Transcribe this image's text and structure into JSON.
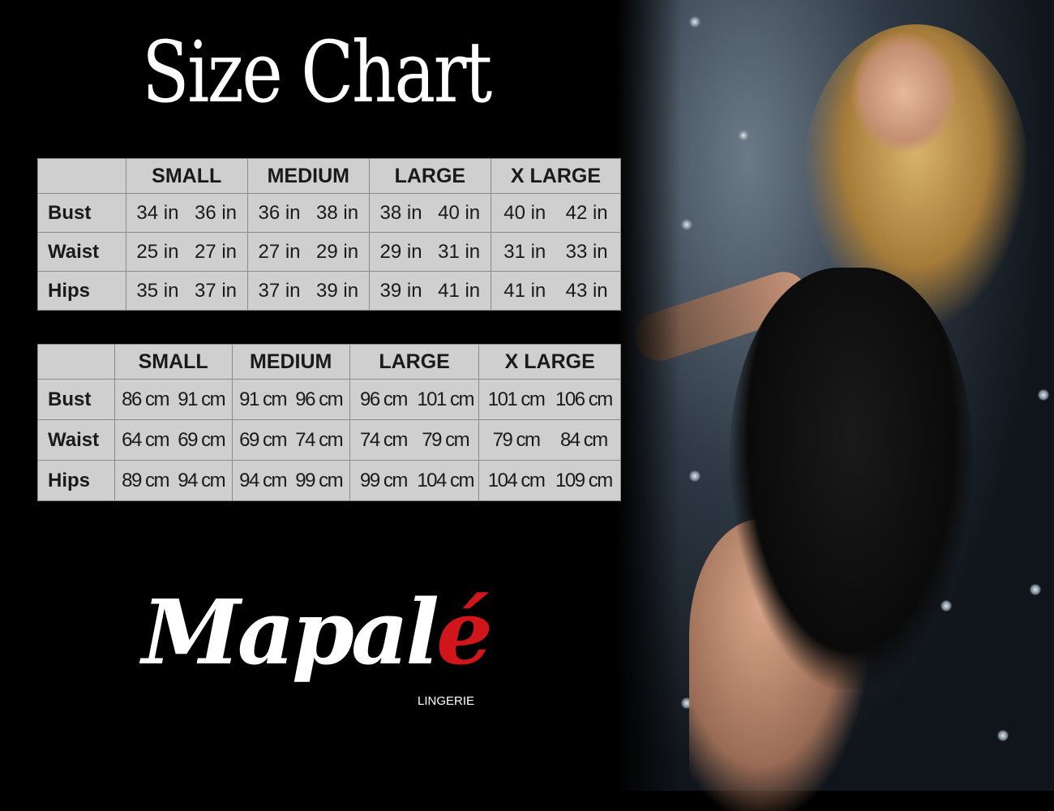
{
  "title": "Size Chart",
  "sizes": [
    "SMALL",
    "MEDIUM",
    "LARGE",
    "X LARGE"
  ],
  "tables": [
    {
      "unit": "in",
      "rows": [
        {
          "label": "Bust",
          "values": [
            "34 in",
            "36 in",
            "36 in",
            "38 in",
            "38 in",
            "40 in",
            "40 in",
            "42 in"
          ]
        },
        {
          "label": "Waist",
          "values": [
            "25 in",
            "27 in",
            "27 in",
            "29 in",
            "29 in",
            "31 in",
            "31 in",
            "33 in"
          ]
        },
        {
          "label": "Hips",
          "values": [
            "35 in",
            "37 in",
            "37 in",
            "39 in",
            "39 in",
            "41 in",
            "41 in",
            "43 in"
          ]
        }
      ]
    },
    {
      "unit": "cm",
      "rows": [
        {
          "label": "Bust",
          "values": [
            "86 cm",
            "91 cm",
            "91 cm",
            "96 cm",
            "96 cm",
            "101 cm",
            "101 cm",
            "106 cm"
          ]
        },
        {
          "label": "Waist",
          "values": [
            "64 cm",
            "69 cm",
            "69 cm",
            "74 cm",
            "74 cm",
            "79  cm",
            "79 cm",
            "84 cm"
          ]
        },
        {
          "label": "Hips",
          "values": [
            "89 cm",
            "94 cm",
            "94 cm",
            "99 cm",
            "99 cm",
            "104 cm",
            "104 cm",
            "109 cm"
          ]
        }
      ]
    }
  ],
  "logo": {
    "text": "Mapalé",
    "tagline": "LINGERIE",
    "accent": "#d0151b"
  },
  "colors": {
    "background": "#000000",
    "table_bg": "#cfcfcf"
  }
}
